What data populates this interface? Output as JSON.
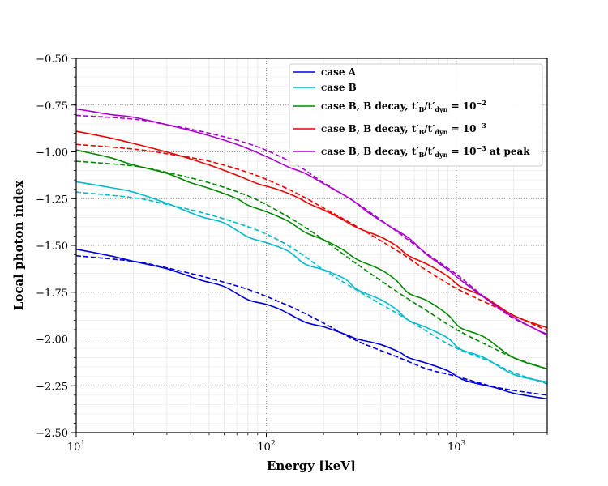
{
  "chart_data": {
    "type": "line",
    "title": "",
    "xlabel": "Energy [keV]",
    "ylabel": "Local photon index",
    "xscale": "log",
    "xlim": [
      10,
      3000
    ],
    "ylim": [
      -2.5,
      -0.5
    ],
    "grid": true,
    "legend_position": "top-right",
    "x_ticks": [
      {
        "base": "10",
        "exp": "1",
        "value": 10
      },
      {
        "base": "10",
        "exp": "2",
        "value": 100
      },
      {
        "base": "10",
        "exp": "3",
        "value": 1000
      }
    ],
    "y_ticks": [
      {
        "label": "−0.50",
        "value": -0.5
      },
      {
        "label": "−0.75",
        "value": -0.75
      },
      {
        "label": "−1.00",
        "value": -1.0
      },
      {
        "label": "−1.25",
        "value": -1.25
      },
      {
        "label": "−1.50",
        "value": -1.5
      },
      {
        "label": "−1.75",
        "value": -1.75
      },
      {
        "label": "−2.00",
        "value": -2.0
      },
      {
        "label": "−2.25",
        "value": -2.25
      },
      {
        "label": "−2.50",
        "value": -2.5
      }
    ],
    "series": [
      {
        "name": "case A",
        "color": "#0000dd",
        "solid": {
          "x": [
            10,
            15,
            20,
            30,
            45,
            60,
            80,
            100,
            120,
            160,
            200,
            260,
            300,
            400,
            500,
            560,
            700,
            900,
            1100,
            1600,
            2000,
            3000
          ],
          "y": [
            -1.52,
            -1.555,
            -1.585,
            -1.625,
            -1.685,
            -1.72,
            -1.79,
            -1.815,
            -1.845,
            -1.91,
            -1.935,
            -1.975,
            -2.0,
            -2.03,
            -2.07,
            -2.1,
            -2.13,
            -2.17,
            -2.22,
            -2.26,
            -2.29,
            -2.32
          ]
        },
        "dashed": {
          "x": [
            10,
            20,
            30,
            50,
            80,
            110,
            150,
            200,
            300,
            500,
            700,
            1000,
            1500,
            2000,
            3000
          ],
          "y": [
            -1.555,
            -1.585,
            -1.62,
            -1.675,
            -1.735,
            -1.79,
            -1.85,
            -1.915,
            -2.01,
            -2.1,
            -2.16,
            -2.2,
            -2.25,
            -2.275,
            -2.3
          ]
        }
      },
      {
        "name": "case B",
        "color": "#00bbcc",
        "solid": {
          "x": [
            10,
            15,
            20,
            30,
            45,
            60,
            80,
            100,
            130,
            160,
            200,
            260,
            300,
            400,
            480,
            560,
            700,
            900,
            1050,
            1400,
            2000,
            3000
          ],
          "y": [
            -1.16,
            -1.19,
            -1.215,
            -1.275,
            -1.345,
            -1.38,
            -1.455,
            -1.485,
            -1.53,
            -1.6,
            -1.63,
            -1.68,
            -1.735,
            -1.79,
            -1.84,
            -1.9,
            -1.94,
            -1.995,
            -2.055,
            -2.1,
            -2.19,
            -2.23
          ]
        },
        "dashed": {
          "x": [
            10,
            20,
            30,
            50,
            80,
            110,
            150,
            200,
            300,
            500,
            700,
            1000,
            1500,
            2000,
            3000
          ],
          "y": [
            -1.215,
            -1.245,
            -1.28,
            -1.335,
            -1.4,
            -1.46,
            -1.54,
            -1.63,
            -1.74,
            -1.87,
            -1.96,
            -2.05,
            -2.12,
            -2.18,
            -2.24
          ]
        }
      },
      {
        "name": "case B, B decay, t",
        "sub": "B",
        "mid": "/t",
        "sub2": "dyn",
        "tail": " = 10",
        "sup": "−2",
        "after": "",
        "color": "#008800",
        "solid": {
          "x": [
            10,
            15,
            20,
            30,
            40,
            50,
            70,
            80,
            100,
            130,
            160,
            200,
            250,
            300,
            400,
            480,
            560,
            700,
            900,
            1050,
            1400,
            2000,
            3000
          ],
          "y": [
            -0.99,
            -1.03,
            -1.07,
            -1.115,
            -1.165,
            -1.195,
            -1.25,
            -1.285,
            -1.32,
            -1.37,
            -1.43,
            -1.47,
            -1.52,
            -1.575,
            -1.63,
            -1.685,
            -1.755,
            -1.795,
            -1.87,
            -1.94,
            -1.99,
            -2.1,
            -2.16
          ]
        },
        "dashed": {
          "x": [
            10,
            20,
            30,
            50,
            80,
            110,
            150,
            200,
            300,
            500,
            700,
            1000,
            1500,
            2000,
            3000
          ],
          "y": [
            -1.05,
            -1.075,
            -1.11,
            -1.165,
            -1.235,
            -1.305,
            -1.385,
            -1.47,
            -1.6,
            -1.755,
            -1.85,
            -1.95,
            -2.04,
            -2.1,
            -2.16
          ]
        }
      },
      {
        "name": "case B, B decay, t",
        "sub": "B",
        "mid": "/t",
        "sub2": "dyn",
        "tail": "  = 10",
        "sup": "−3",
        "after": "",
        "color": "#ee0000",
        "solid": {
          "x": [
            10,
            15,
            20,
            25,
            35,
            50,
            70,
            90,
            110,
            140,
            170,
            200,
            250,
            300,
            400,
            480,
            560,
            700,
            900,
            1050,
            1400,
            2000,
            3000
          ],
          "y": [
            -0.89,
            -0.925,
            -0.955,
            -0.98,
            -1.02,
            -1.07,
            -1.125,
            -1.17,
            -1.195,
            -1.235,
            -1.28,
            -1.31,
            -1.36,
            -1.405,
            -1.455,
            -1.5,
            -1.555,
            -1.6,
            -1.665,
            -1.72,
            -1.775,
            -1.875,
            -1.94
          ]
        },
        "dashed": {
          "x": [
            10,
            20,
            30,
            50,
            80,
            110,
            150,
            200,
            300,
            500,
            700,
            1000,
            1500,
            2000,
            3000
          ],
          "y": [
            -0.96,
            -0.985,
            -1.01,
            -1.05,
            -1.11,
            -1.165,
            -1.23,
            -1.3,
            -1.4,
            -1.535,
            -1.635,
            -1.73,
            -1.815,
            -1.875,
            -1.955
          ]
        }
      },
      {
        "name": "case B, B decay, t",
        "sub": "B",
        "mid": "/t",
        "sub2": "dyn",
        "tail": " = 10",
        "sup": "−3",
        "after": " at peak",
        "color": "#aa00cc",
        "solid": {
          "x": [
            10,
            15,
            20,
            30,
            45,
            70,
            100,
            130,
            160,
            200,
            280,
            350,
            450,
            560,
            700,
            900,
            1100,
            1500,
            2000,
            3000
          ],
          "y": [
            -0.77,
            -0.8,
            -0.815,
            -0.855,
            -0.9,
            -0.96,
            -1.025,
            -1.08,
            -1.115,
            -1.17,
            -1.255,
            -1.33,
            -1.4,
            -1.46,
            -1.55,
            -1.63,
            -1.7,
            -1.8,
            -1.885,
            -1.98
          ]
        },
        "dashed": {
          "x": [
            10,
            20,
            30,
            50,
            80,
            110,
            150,
            200,
            300,
            500,
            700,
            1000,
            1500,
            2000,
            3000
          ],
          "y": [
            -0.805,
            -0.825,
            -0.855,
            -0.9,
            -0.955,
            -1.01,
            -1.08,
            -1.165,
            -1.275,
            -1.435,
            -1.545,
            -1.655,
            -1.8,
            -1.89,
            -1.975
          ]
        }
      }
    ]
  }
}
